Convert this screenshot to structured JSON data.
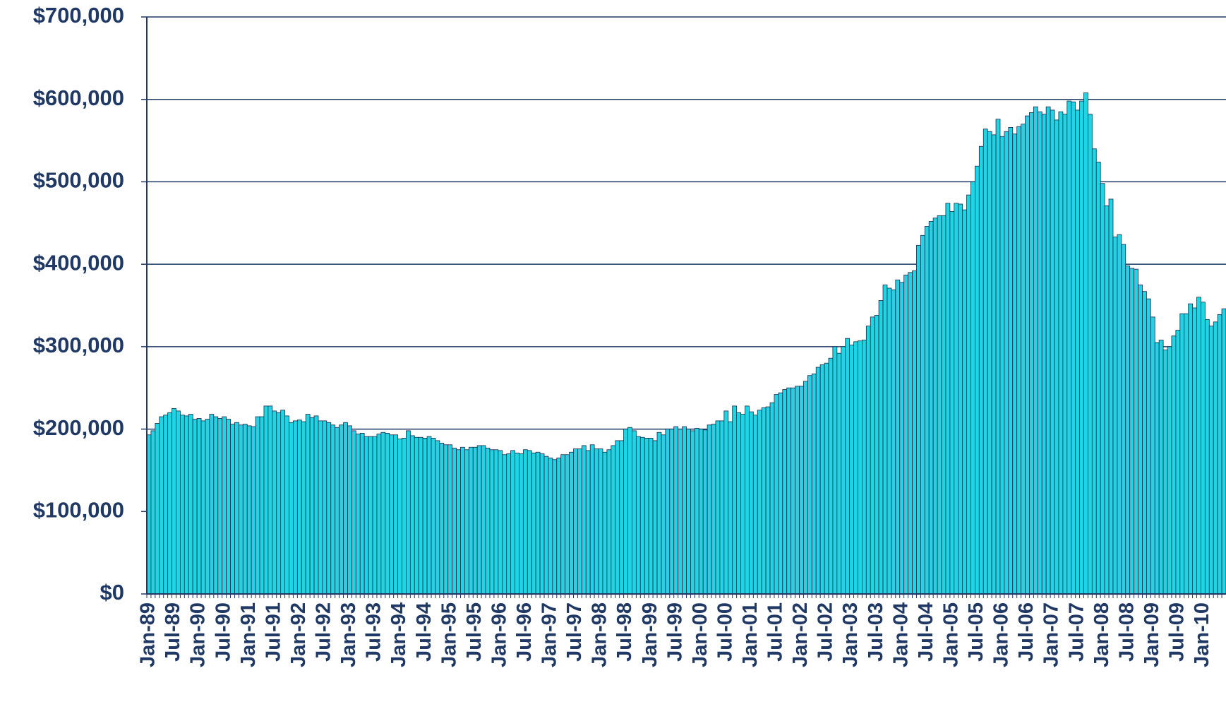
{
  "chart_data": {
    "type": "bar",
    "categories": [
      "Jan-89",
      null,
      null,
      null,
      null,
      null,
      "Jul-89",
      null,
      null,
      null,
      null,
      null,
      "Jan-90",
      null,
      null,
      null,
      null,
      null,
      "Jul-90",
      null,
      null,
      null,
      null,
      null,
      "Jan-91",
      null,
      null,
      null,
      null,
      null,
      "Jul-91",
      null,
      null,
      null,
      null,
      null,
      "Jan-92",
      null,
      null,
      null,
      null,
      null,
      "Jul-92",
      null,
      null,
      null,
      null,
      null,
      "Jan-93",
      null,
      null,
      null,
      null,
      null,
      "Jul-93",
      null,
      null,
      null,
      null,
      null,
      "Jan-94",
      null,
      null,
      null,
      null,
      null,
      "Jul-94",
      null,
      null,
      null,
      null,
      null,
      "Jan-95",
      null,
      null,
      null,
      null,
      null,
      "Jul-95",
      null,
      null,
      null,
      null,
      null,
      "Jan-96",
      null,
      null,
      null,
      null,
      null,
      "Jul-96",
      null,
      null,
      null,
      null,
      null,
      "Jan-97",
      null,
      null,
      null,
      null,
      null,
      "Jul-97",
      null,
      null,
      null,
      null,
      null,
      "Jan-98",
      null,
      null,
      null,
      null,
      null,
      "Jul-98",
      null,
      null,
      null,
      null,
      null,
      "Jan-99",
      null,
      null,
      null,
      null,
      null,
      "Jul-99",
      null,
      null,
      null,
      null,
      null,
      "Jan-00",
      null,
      null,
      null,
      null,
      null,
      "Jul-00",
      null,
      null,
      null,
      null,
      null,
      "Jan-01",
      null,
      null,
      null,
      null,
      null,
      "Jul-01",
      null,
      null,
      null,
      null,
      null,
      "Jan-02",
      null,
      null,
      null,
      null,
      null,
      "Jul-02",
      null,
      null,
      null,
      null,
      null,
      "Jan-03",
      null,
      null,
      null,
      null,
      null,
      "Jul-03",
      null,
      null,
      null,
      null,
      null,
      "Jan-04",
      null,
      null,
      null,
      null,
      null,
      "Jul-04",
      null,
      null,
      null,
      null,
      null,
      "Jan-05",
      null,
      null,
      null,
      null,
      null,
      "Jul-05",
      null,
      null,
      null,
      null,
      null,
      "Jan-06",
      null,
      null,
      null,
      null,
      null,
      "Jul-06",
      null,
      null,
      null,
      null,
      null,
      "Jan-07",
      null,
      null,
      null,
      null,
      null,
      "Jul-07",
      null,
      null,
      null,
      null,
      null,
      "Jan-08",
      null,
      null,
      null,
      null,
      null,
      "Jul-08",
      null,
      null,
      null,
      null,
      null,
      "Jan-09",
      null,
      null,
      null,
      null,
      null,
      "Jul-09",
      null,
      null,
      null,
      null,
      null,
      "Jan-10",
      null,
      null,
      null,
      null,
      null
    ],
    "values": [
      193000,
      198000,
      207000,
      215000,
      217000,
      220000,
      225000,
      222000,
      217000,
      216000,
      218000,
      212000,
      213000,
      210000,
      212000,
      218000,
      215000,
      213000,
      215000,
      212000,
      206000,
      208000,
      205000,
      206000,
      204000,
      203000,
      215000,
      215000,
      228000,
      228000,
      222000,
      220000,
      223000,
      216000,
      208000,
      210000,
      211000,
      209000,
      218000,
      214000,
      216000,
      210000,
      210000,
      208000,
      205000,
      202000,
      205000,
      208000,
      204000,
      198000,
      194000,
      195000,
      191000,
      191000,
      191000,
      194000,
      196000,
      195000,
      193000,
      193000,
      188000,
      189000,
      198000,
      192000,
      190000,
      190000,
      189000,
      191000,
      189000,
      186000,
      183000,
      181000,
      181000,
      177000,
      175000,
      178000,
      175000,
      178000,
      178000,
      180000,
      180000,
      177000,
      175000,
      175000,
      174000,
      169000,
      170000,
      174000,
      171000,
      170000,
      175000,
      174000,
      171000,
      172000,
      170000,
      167000,
      165000,
      163000,
      165000,
      169000,
      169000,
      172000,
      176000,
      176000,
      180000,
      174000,
      181000,
      176000,
      176000,
      172000,
      175000,
      180000,
      186000,
      186000,
      200000,
      202000,
      198000,
      191000,
      190000,
      189000,
      189000,
      186000,
      196000,
      193000,
      200000,
      200000,
      203000,
      200000,
      203000,
      200000,
      198000,
      201000,
      200000,
      199000,
      205000,
      206000,
      210000,
      210000,
      222000,
      209000,
      228000,
      220000,
      218000,
      228000,
      221000,
      217000,
      223000,
      226000,
      227000,
      232000,
      242000,
      244000,
      248000,
      250000,
      250000,
      252000,
      252000,
      258000,
      265000,
      267000,
      275000,
      278000,
      280000,
      286000,
      300000,
      292000,
      300000,
      310000,
      302000,
      306000,
      307000,
      308000,
      325000,
      336000,
      338000,
      356000,
      375000,
      371000,
      369000,
      381000,
      378000,
      387000,
      390000,
      392000,
      423000,
      435000,
      446000,
      452000,
      456000,
      459000,
      459000,
      474000,
      464000,
      474000,
      473000,
      466000,
      484000,
      500000,
      519000,
      543000,
      564000,
      561000,
      557000,
      576000,
      555000,
      561000,
      566000,
      558000,
      567000,
      570000,
      580000,
      584000,
      591000,
      585000,
      582000,
      591000,
      587000,
      575000,
      585000,
      582000,
      598000,
      597000,
      587000,
      598000,
      608000,
      582000,
      540000,
      524000,
      498000,
      471000,
      479000,
      433000,
      436000,
      424000,
      398000,
      395000,
      394000,
      375000,
      367000,
      358000,
      336000,
      305000,
      308000,
      296000,
      300000,
      313000,
      320000,
      340000,
      340000,
      352000,
      347000,
      360000,
      354000,
      333000,
      325000,
      330000,
      339000,
      346000
    ],
    "color": "#22d3e3",
    "ylim": [
      0,
      700000
    ],
    "yticks": [
      {
        "value": 0,
        "label": "$0"
      },
      {
        "value": 100000,
        "label": "$100,000"
      },
      {
        "value": 200000,
        "label": "$200,000"
      },
      {
        "value": 300000,
        "label": "$300,000"
      },
      {
        "value": 400000,
        "label": "$400,000"
      },
      {
        "value": 500000,
        "label": "$500,000"
      },
      {
        "value": 600000,
        "label": "$600,000"
      },
      {
        "value": 700000,
        "label": "$700,000"
      }
    ],
    "grid": true
  }
}
